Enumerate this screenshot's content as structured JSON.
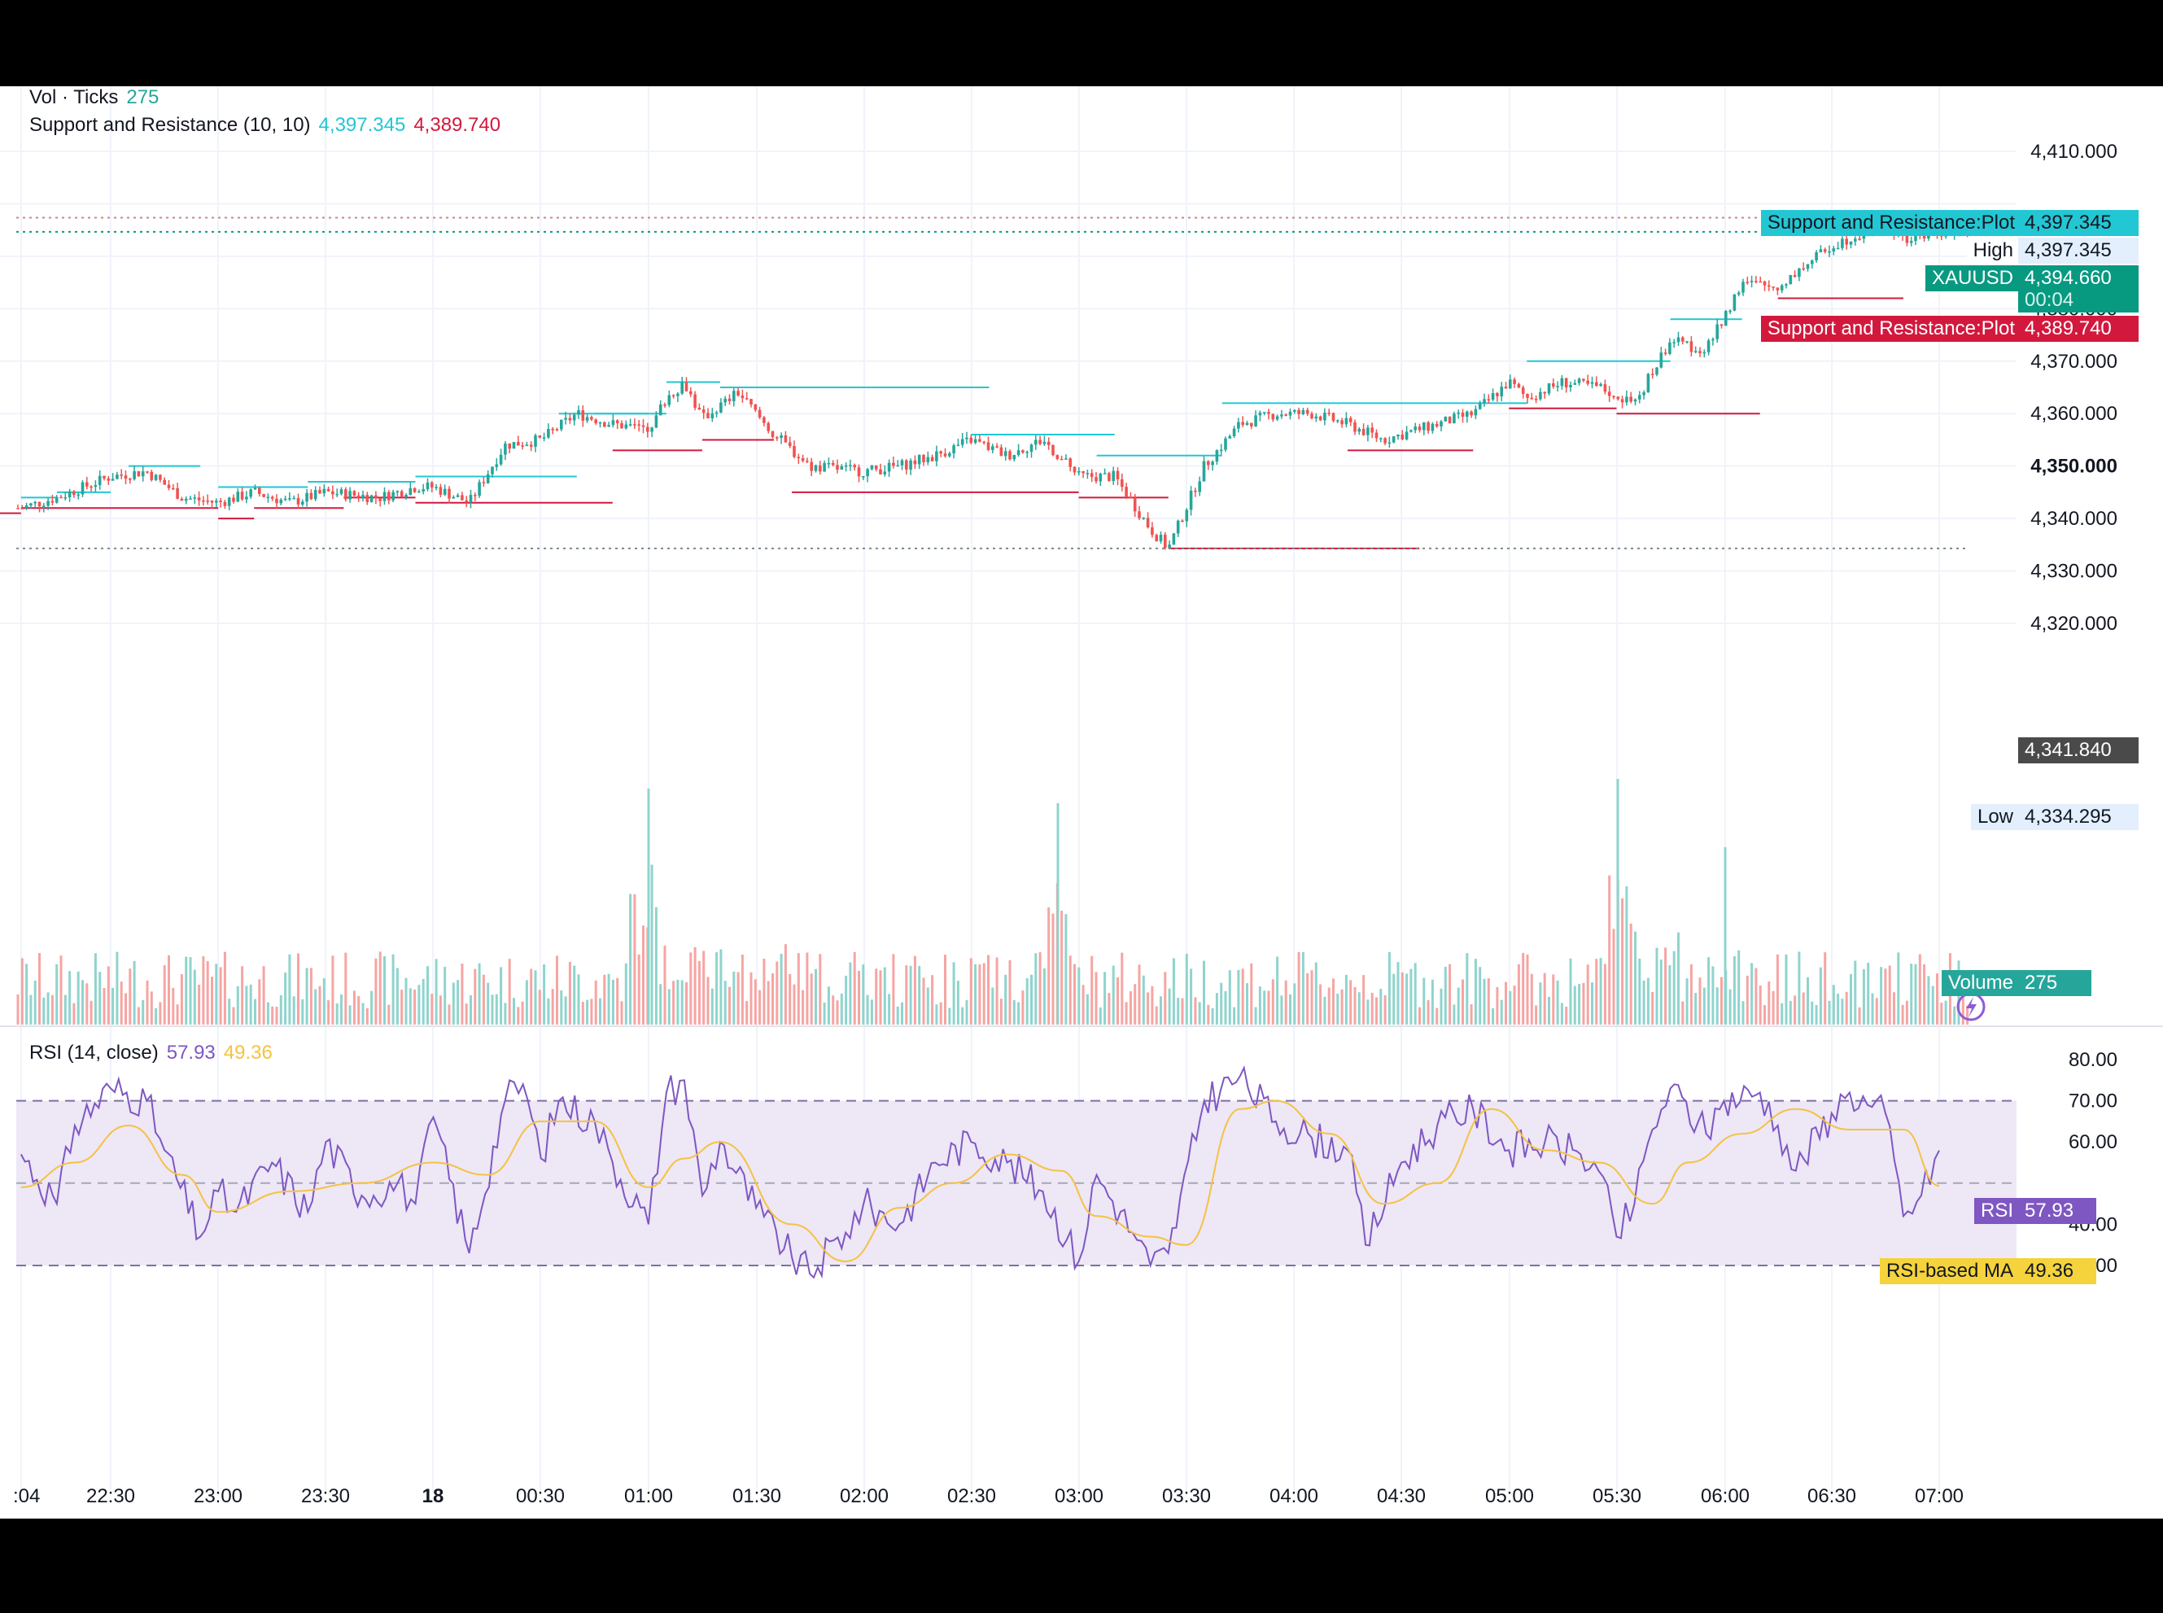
{
  "legend": {
    "vol_title": "Vol · Ticks",
    "vol_value": "275",
    "sr_title": "Support and Resistance (10, 10)",
    "sr_resistance_value": "4,397.345",
    "sr_support_value": "4,389.740",
    "rsi_title": "RSI (14, close)",
    "rsi_value": "57.93",
    "rsi_ma_value": "49.36"
  },
  "price_axis": {
    "ticks": [
      "4,410.000",
      "4,380.000",
      "4,370.000",
      "4,360.000",
      "4,350.000",
      "4,340.000",
      "4,330.000",
      "4,320.000"
    ]
  },
  "rsi_axis": {
    "ticks": [
      "80.00",
      "70.00",
      "60.00",
      "40.00",
      "30.00"
    ]
  },
  "time_axis": {
    "labels": [
      ":04",
      "22:30",
      "23:00",
      "23:30",
      "18",
      "00:30",
      "01:00",
      "01:30",
      "02:00",
      "02:30",
      "03:00",
      "03:30",
      "04:00",
      "04:30",
      "05:00",
      "05:30",
      "06:00",
      "06:30",
      "07:00"
    ]
  },
  "tags": {
    "sr_resistance_label": "Support and Resistance:Plot",
    "sr_resistance_value": "4,397.345",
    "high_label": "High",
    "high_value": "4,397.345",
    "symbol_label": "XAUUSD",
    "last_price": "4,394.660",
    "countdown": "00:04",
    "sr_support_label": "Support and Resistance:Plot",
    "sr_support_value": "4,389.740",
    "crosshair_price": "4,341.840",
    "low_label": "Low",
    "low_value": "4,334.295",
    "volume_label": "Volume",
    "volume_value": "275",
    "rsi_label": "RSI",
    "rsi_value": "57.93",
    "rsi_ma_label": "RSI-based MA",
    "rsi_ma_value": "49.36"
  },
  "colors": {
    "up": "#26a69a",
    "down": "#ef5350",
    "resistance": "#22c7d3",
    "support": "#d2193d",
    "rsi_line": "#7e57c2",
    "rsi_ma": "#f5c242",
    "rsi_band": "#ede7f6",
    "axis_text": "#131722",
    "last_price_bg": "#089981",
    "crosshair_bg": "#4a4a4a",
    "tag_bg": "#e3effd"
  },
  "chart_data": [
    {
      "type": "candlestick",
      "symbol": "XAUUSD",
      "ylim": [
        4313,
        4415
      ],
      "x_labels": [
        ":04",
        "22:30",
        "23:00",
        "23:30",
        "18",
        "00:30",
        "01:00",
        "01:30",
        "02:00",
        "02:30",
        "03:00",
        "03:30",
        "04:00",
        "04:30",
        "05:00",
        "05:30",
        "06:00",
        "06:30",
        "07:00"
      ],
      "close_path": [
        [
          "22:05",
          4342
        ],
        [
          "22:15",
          4344
        ],
        [
          "22:30",
          4348
        ],
        [
          "22:40",
          4349
        ],
        [
          "22:50",
          4344
        ],
        [
          "23:00",
          4343
        ],
        [
          "23:10",
          4345
        ],
        [
          "23:20",
          4343
        ],
        [
          "23:30",
          4345
        ],
        [
          "23:45",
          4344
        ],
        [
          "23:55",
          4346
        ],
        [
          "18",
          4346
        ],
        [
          "00:10",
          4343
        ],
        [
          "00:20",
          4354
        ],
        [
          "00:30",
          4355
        ],
        [
          "00:40",
          4360
        ],
        [
          "00:50",
          4358
        ],
        [
          "01:00",
          4357
        ],
        [
          "01:05",
          4363
        ],
        [
          "01:10",
          4366
        ],
        [
          "01:15",
          4359
        ],
        [
          "01:25",
          4364
        ],
        [
          "01:35",
          4356
        ],
        [
          "01:45",
          4350
        ],
        [
          "02:00",
          4349
        ],
        [
          "02:10",
          4350
        ],
        [
          "02:20",
          4352
        ],
        [
          "02:30",
          4355
        ],
        [
          "02:40",
          4352
        ],
        [
          "02:50",
          4355
        ],
        [
          "03:00",
          4348
        ],
        [
          "03:10",
          4348
        ],
        [
          "03:20",
          4338
        ],
        [
          "03:25",
          4334.295
        ],
        [
          "03:35",
          4350
        ],
        [
          "03:45",
          4358
        ],
        [
          "03:55",
          4360
        ],
        [
          "04:05",
          4360
        ],
        [
          "04:15",
          4358
        ],
        [
          "04:25",
          4355
        ],
        [
          "04:35",
          4357
        ],
        [
          "04:50",
          4360
        ],
        [
          "05:00",
          4366
        ],
        [
          "05:05",
          4363
        ],
        [
          "05:15",
          4366
        ],
        [
          "05:25",
          4365
        ],
        [
          "05:35",
          4362
        ],
        [
          "05:45",
          4374
        ],
        [
          "05:55",
          4372
        ],
        [
          "06:05",
          4385
        ],
        [
          "06:15",
          4384
        ],
        [
          "06:20",
          4387
        ],
        [
          "06:30",
          4392
        ],
        [
          "06:40",
          4395
        ],
        [
          "06:45",
          4396
        ],
        [
          "06:50",
          4393
        ],
        [
          "07:00",
          4394.66
        ]
      ],
      "high": 4397.345,
      "low": 4334.295,
      "last": 4394.66
    },
    {
      "type": "bar",
      "name": "Volume",
      "last": 275
    },
    {
      "type": "step",
      "name": "Support and Resistance (10, 10)",
      "resistance_levels": [
        {
          "from": "22:05",
          "to": "22:15",
          "price": 4344
        },
        {
          "from": "22:15",
          "to": "22:30",
          "price": 4345
        },
        {
          "from": "22:35",
          "to": "22:55",
          "price": 4350
        },
        {
          "from": "23:00",
          "to": "23:25",
          "price": 4346
        },
        {
          "from": "23:25",
          "to": "23:55",
          "price": 4347
        },
        {
          "from": "23:55",
          "to": "00:40",
          "price": 4348
        },
        {
          "from": "00:35",
          "to": "01:00",
          "price": 4360
        },
        {
          "from": "00:45",
          "to": "01:05",
          "price": 4360
        },
        {
          "from": "01:05",
          "to": "01:20",
          "price": 4366
        },
        {
          "from": "01:20",
          "to": "02:35",
          "price": 4365
        },
        {
          "from": "02:30",
          "to": "02:55",
          "price": 4356
        },
        {
          "from": "02:55",
          "to": "03:10",
          "price": 4356
        },
        {
          "from": "03:05",
          "to": "03:40",
          "price": 4352
        },
        {
          "from": "03:40",
          "to": "04:00",
          "price": 4362
        },
        {
          "from": "04:00",
          "to": "05:05",
          "price": 4362
        },
        {
          "from": "05:05",
          "to": "05:25",
          "price": 4370
        },
        {
          "from": "05:25",
          "to": "05:45",
          "price": 4370
        },
        {
          "from": "05:45",
          "to": "06:05",
          "price": 4378
        },
        {
          "from": "06:35",
          "to": "06:55",
          "price": 4397.345
        }
      ],
      "support_levels": [
        {
          "from": "21:55",
          "to": "22:05",
          "price": 4341
        },
        {
          "from": "22:05",
          "to": "22:40",
          "price": 4342
        },
        {
          "from": "22:40",
          "to": "23:00",
          "price": 4342
        },
        {
          "from": "23:00",
          "to": "23:10",
          "price": 4340
        },
        {
          "from": "23:10",
          "to": "23:35",
          "price": 4342
        },
        {
          "from": "23:35",
          "to": "23:55",
          "price": 4344
        },
        {
          "from": "23:55",
          "to": "00:50",
          "price": 4343
        },
        {
          "from": "00:50",
          "to": "01:15",
          "price": 4353
        },
        {
          "from": "01:15",
          "to": "01:35",
          "price": 4355
        },
        {
          "from": "01:40",
          "to": "03:00",
          "price": 4345
        },
        {
          "from": "03:00",
          "to": "03:25",
          "price": 4344
        },
        {
          "from": "03:25",
          "to": "04:35",
          "price": 4334.295
        },
        {
          "from": "04:15",
          "to": "04:50",
          "price": 4353
        },
        {
          "from": "05:00",
          "to": "05:30",
          "price": 4361
        },
        {
          "from": "05:30",
          "to": "06:10",
          "price": 4360
        },
        {
          "from": "06:15",
          "to": "06:50",
          "price": 4382
        }
      ]
    },
    {
      "type": "line",
      "name": "RSI (14, close)",
      "ylim": [
        25,
        82
      ],
      "bands": [
        30,
        50,
        70
      ],
      "series": [
        {
          "name": "RSI",
          "points": [
            [
              "22:05",
              57
            ],
            [
              "22:15",
              45
            ],
            [
              "22:20",
              64
            ],
            [
              "22:30",
              73
            ],
            [
              "22:40",
              70
            ],
            [
              "22:45",
              58
            ],
            [
              "22:55",
              37
            ],
            [
              "23:00",
              48
            ],
            [
              "23:05",
              43
            ],
            [
              "23:15",
              55
            ],
            [
              "23:25",
              43
            ],
            [
              "23:30",
              60
            ],
            [
              "23:40",
              47
            ],
            [
              "23:50",
              50
            ],
            [
              "23:55",
              45
            ],
            [
              "18",
              66
            ],
            [
              "00:10",
              33
            ],
            [
              "00:20",
              70
            ],
            [
              "00:25",
              74
            ],
            [
              "00:30",
              56
            ],
            [
              "00:35",
              70
            ],
            [
              "00:45",
              65
            ],
            [
              "00:50",
              55
            ],
            [
              "01:00",
              40
            ],
            [
              "01:05",
              72
            ],
            [
              "01:10",
              75
            ],
            [
              "01:15",
              47
            ],
            [
              "01:20",
              60
            ],
            [
              "01:30",
              44
            ],
            [
              "01:40",
              32
            ],
            [
              "01:45",
              28
            ],
            [
              "01:55",
              38
            ],
            [
              "02:00",
              45
            ],
            [
              "02:10",
              40
            ],
            [
              "02:20",
              55
            ],
            [
              "02:30",
              60
            ],
            [
              "02:40",
              55
            ],
            [
              "02:50",
              48
            ],
            [
              "03:00",
              31
            ],
            [
              "03:05",
              52
            ],
            [
              "03:15",
              38
            ],
            [
              "03:20",
              30
            ],
            [
              "03:25",
              33
            ],
            [
              "03:35",
              70
            ],
            [
              "03:45",
              76
            ],
            [
              "03:55",
              65
            ],
            [
              "04:05",
              61
            ],
            [
              "04:15",
              58
            ],
            [
              "04:20",
              35
            ],
            [
              "04:30",
              55
            ],
            [
              "04:40",
              64
            ],
            [
              "04:50",
              68
            ],
            [
              "05:00",
              58
            ],
            [
              "05:10",
              60
            ],
            [
              "05:20",
              57
            ],
            [
              "05:25",
              53
            ],
            [
              "05:30",
              37
            ],
            [
              "05:35",
              45
            ],
            [
              "05:40",
              63
            ],
            [
              "05:45",
              73
            ],
            [
              "05:55",
              62
            ],
            [
              "06:00",
              70
            ],
            [
              "06:10",
              72
            ],
            [
              "06:15",
              64
            ],
            [
              "06:20",
              53
            ],
            [
              "06:30",
              67
            ],
            [
              "06:35",
              72
            ],
            [
              "06:40",
              69
            ],
            [
              "06:45",
              67
            ],
            [
              "06:50",
              42
            ],
            [
              "06:55",
              47
            ],
            [
              "07:00",
              57.93
            ]
          ]
        },
        {
          "name": "RSI-based MA",
          "points": [
            [
              "22:05",
              49
            ],
            [
              "22:20",
              55
            ],
            [
              "22:35",
              64
            ],
            [
              "22:50",
              52
            ],
            [
              "23:00",
              43
            ],
            [
              "23:20",
              48
            ],
            [
              "23:40",
              50
            ],
            [
              "18",
              55
            ],
            [
              "00:15",
              52
            ],
            [
              "00:30",
              65
            ],
            [
              "00:45",
              65
            ],
            [
              "01:00",
              49
            ],
            [
              "01:10",
              56
            ],
            [
              "01:20",
              60
            ],
            [
              "01:40",
              40
            ],
            [
              "01:55",
              31
            ],
            [
              "02:10",
              44
            ],
            [
              "02:25",
              50
            ],
            [
              "02:40",
              57
            ],
            [
              "02:55",
              53
            ],
            [
              "03:05",
              42
            ],
            [
              "03:20",
              37
            ],
            [
              "03:30",
              35
            ],
            [
              "03:45",
              68
            ],
            [
              "03:55",
              70
            ],
            [
              "04:10",
              62
            ],
            [
              "04:25",
              45
            ],
            [
              "04:40",
              50
            ],
            [
              "04:55",
              68
            ],
            [
              "05:10",
              58
            ],
            [
              "05:25",
              55
            ],
            [
              "05:40",
              45
            ],
            [
              "05:50",
              55
            ],
            [
              "06:05",
              62
            ],
            [
              "06:20",
              68
            ],
            [
              "06:35",
              63
            ],
            [
              "06:50",
              63
            ],
            [
              "07:00",
              49.36
            ]
          ]
        }
      ]
    }
  ]
}
